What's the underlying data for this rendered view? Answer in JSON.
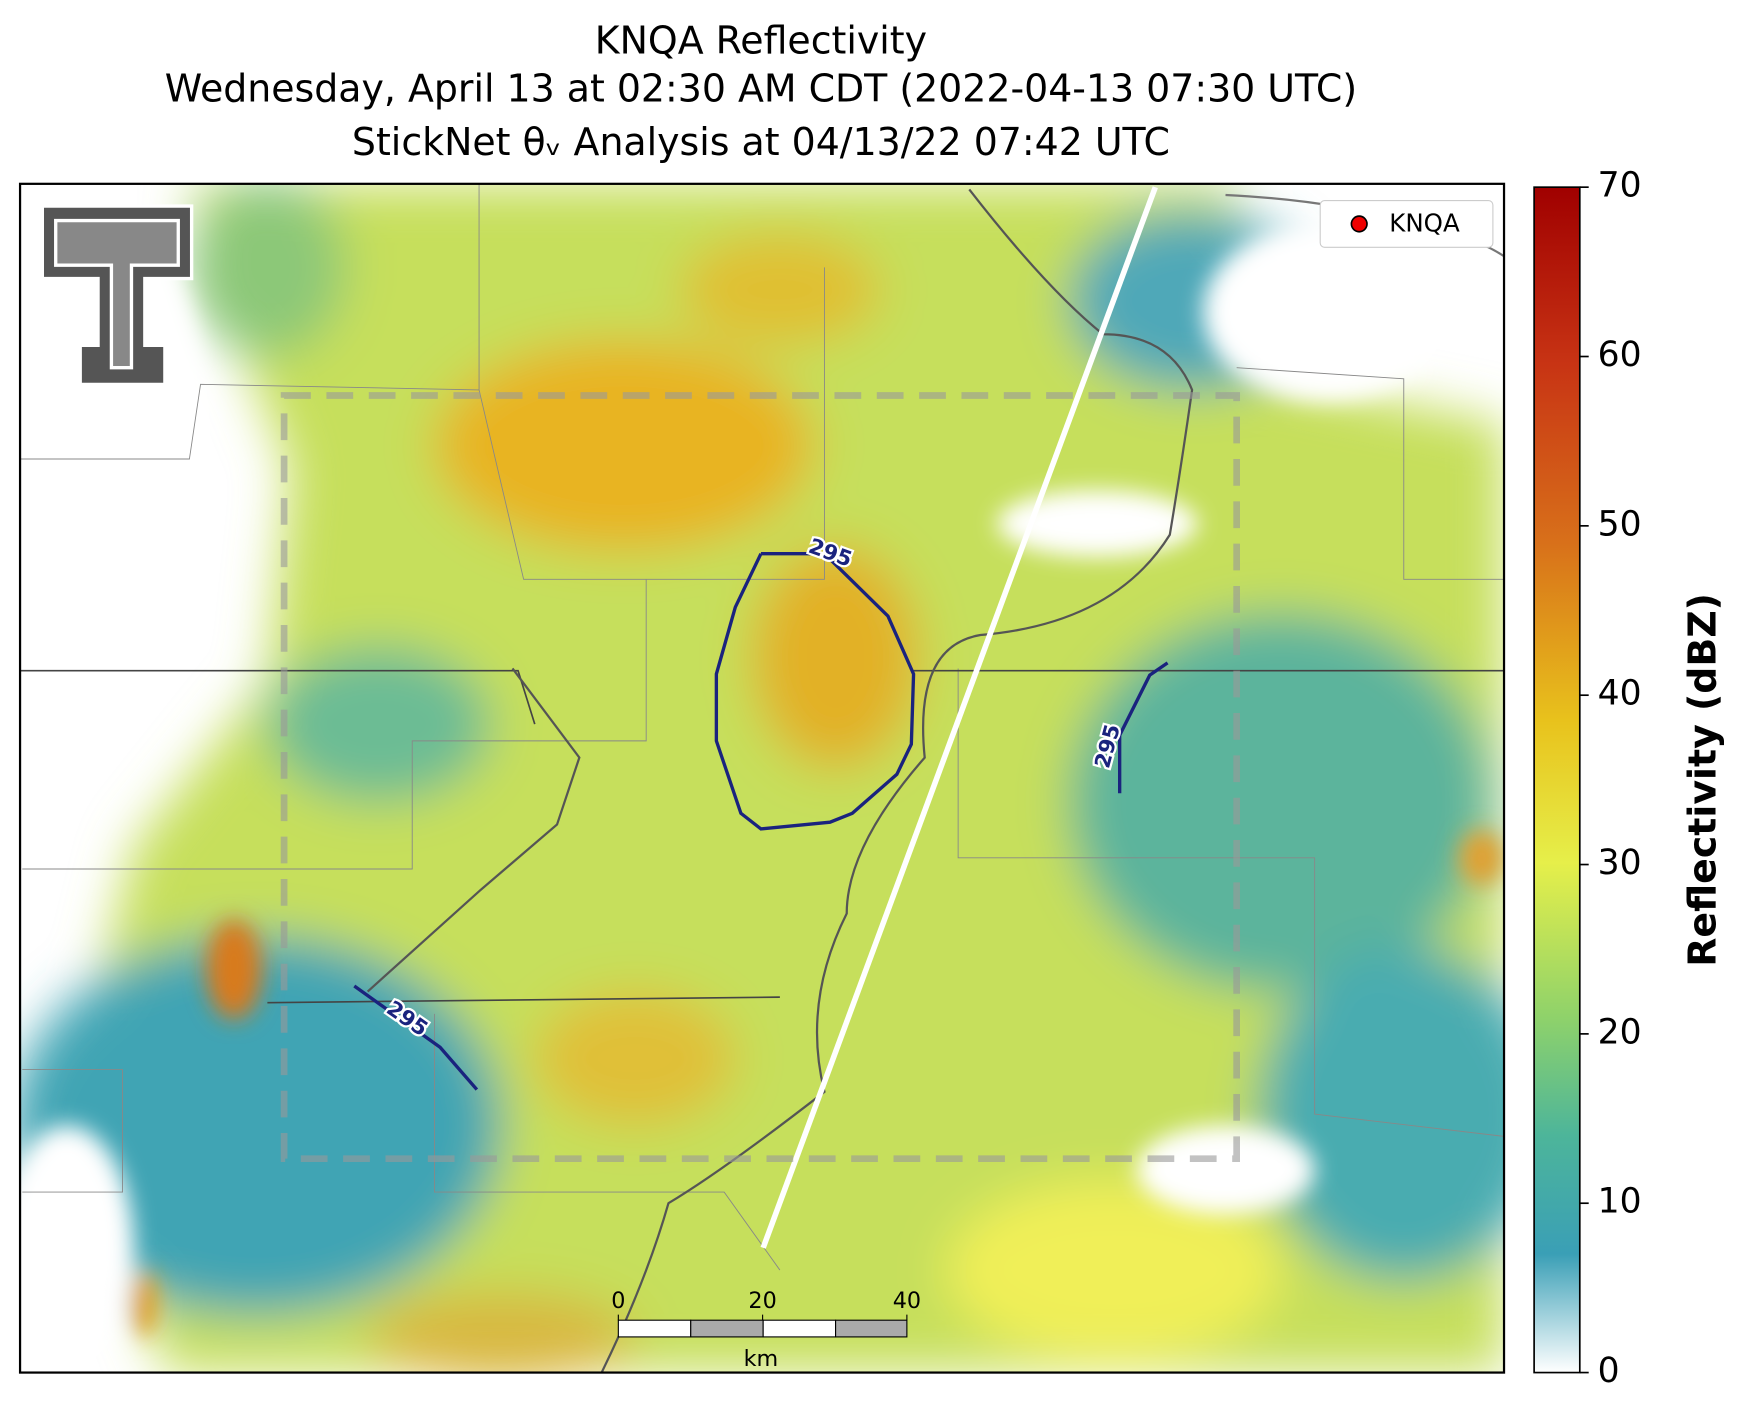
{
  "title": {
    "lines": [
      "KNQA Reflectivity",
      "Wednesday, April 13 at 02:30 AM CDT (2022-04-13 07:30 UTC)",
      "StickNet θᵥ Analysis at 04/13/22 07:42 UTC"
    ]
  },
  "legend": {
    "label": "KNQA"
  },
  "contour_labels": [
    "295",
    "295",
    "295"
  ],
  "scale_bar": {
    "ticks": [
      0,
      20,
      40
    ],
    "unit": "km"
  },
  "colorbar": {
    "label": "Reflectivity (dBZ)",
    "lim": [
      0,
      70
    ],
    "ticks": [
      0,
      10,
      20,
      30,
      40,
      50,
      60,
      70
    ]
  }
}
